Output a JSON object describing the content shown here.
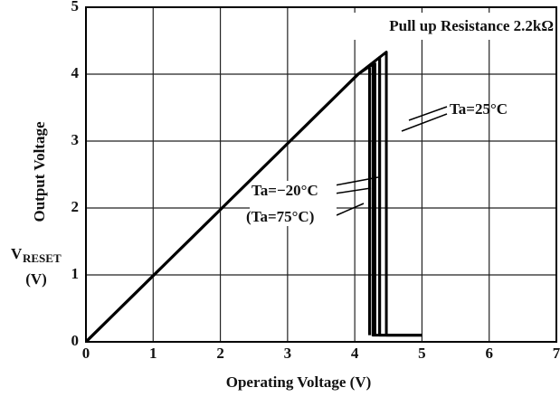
{
  "chart_data": {
    "type": "line",
    "xlabel": "Operating Voltage (V)",
    "ylabel": "Output Voltage",
    "ylabel_symbol": "V",
    "ylabel_subscript": "RESET",
    "ylabel_unit": "(V)",
    "annotations": [
      "Pull up Resistance 2.2kΩ",
      "Ta=25°C",
      "Ta=−20°C",
      "(Ta=75°C)"
    ],
    "series": [
      {
        "color": "#000000",
        "x": [
          0,
          4.05,
          4.47,
          4.47,
          5
        ],
        "values": [
          0,
          4.0,
          4.33,
          0.1,
          0.1
        ]
      },
      {
        "color": "#000000",
        "x": [
          0,
          4.05,
          4.37,
          4.37,
          5
        ],
        "values": [
          0,
          4.0,
          4.25,
          0.1,
          0.1
        ]
      },
      {
        "color": "#000000",
        "x": [
          0,
          4.05,
          4.27,
          4.27,
          5
        ],
        "values": [
          0,
          4.0,
          4.15,
          0.1,
          0.1
        ]
      },
      {
        "color": "#000000",
        "x": [
          4.37,
          4.37
        ],
        "values": [
          0.1,
          4.25
        ]
      },
      {
        "color": "#000000",
        "x": [
          4.3,
          4.3
        ],
        "values": [
          0.1,
          4.17
        ]
      },
      {
        "color": "#000000",
        "x": [
          4.22,
          4.22
        ],
        "values": [
          0.1,
          4.1
        ]
      }
    ],
    "xlim": [
      0,
      7
    ],
    "ylim": [
      0,
      5
    ],
    "xticks": [
      0,
      1,
      2,
      3,
      4,
      5,
      6,
      7
    ],
    "yticks": [
      0,
      1,
      2,
      3,
      4,
      5
    ],
    "grid": true
  }
}
